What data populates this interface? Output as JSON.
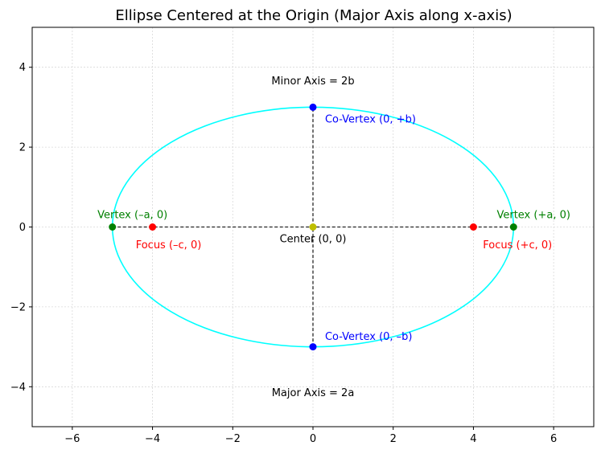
{
  "chart_data": {
    "type": "line",
    "title": "Ellipse Centered at the Origin (Major Axis along x-axis)",
    "xlabel": "",
    "ylabel": "",
    "xlim": [
      -7,
      7
    ],
    "ylim": [
      -5,
      5
    ],
    "grid": true,
    "xticks": [
      -6,
      -4,
      -2,
      0,
      2,
      4,
      6
    ],
    "yticks": [
      -4,
      -2,
      0,
      2,
      4
    ],
    "xtick_labels": [
      "−6",
      "−4",
      "−2",
      "0",
      "2",
      "4",
      "6"
    ],
    "ytick_labels": [
      "−4",
      "−2",
      "0",
      "2",
      "4"
    ],
    "ellipse": {
      "a": 5,
      "b": 3,
      "center": [
        0,
        0
      ],
      "color": "#00ffff"
    },
    "axis_lines": [
      {
        "name": "major-axis-line",
        "from": [
          -5,
          0
        ],
        "to": [
          5,
          0
        ],
        "color": "#000000"
      },
      {
        "name": "minor-axis-line",
        "from": [
          0,
          -3
        ],
        "to": [
          0,
          3
        ],
        "color": "#000000"
      }
    ],
    "points": [
      {
        "name": "center",
        "x": 0,
        "y": 0,
        "color": "#bfbf00"
      },
      {
        "name": "vertex-left",
        "x": -5,
        "y": 0,
        "color": "#008000"
      },
      {
        "name": "vertex-right",
        "x": 5,
        "y": 0,
        "color": "#008000"
      },
      {
        "name": "focus-left",
        "x": -4,
        "y": 0,
        "color": "#ff0000"
      },
      {
        "name": "focus-right",
        "x": 4,
        "y": 0,
        "color": "#ff0000"
      },
      {
        "name": "co-vertex-top",
        "x": 0,
        "y": 3,
        "color": "#0000ff"
      },
      {
        "name": "co-vertex-bottom",
        "x": 0,
        "y": -3,
        "color": "#0000ff"
      }
    ],
    "annotations": [
      {
        "name": "label-center",
        "text": "Center (0, 0)",
        "x": 0,
        "y": -0.3,
        "anchor": "middle",
        "color": "#000000"
      },
      {
        "name": "label-vertex-left",
        "text": "Vertex (–a, 0)",
        "x": -4.5,
        "y": 0.3,
        "anchor": "middle",
        "color": "#008000"
      },
      {
        "name": "label-vertex-right",
        "text": "Vertex (+a, 0)",
        "x": 5.5,
        "y": 0.3,
        "anchor": "middle",
        "color": "#008000"
      },
      {
        "name": "label-focus-left",
        "text": "Focus (–c, 0)",
        "x": -3.6,
        "y": -0.45,
        "anchor": "middle",
        "color": "#ff0000"
      },
      {
        "name": "label-focus-right",
        "text": "Focus (+c, 0)",
        "x": 5.1,
        "y": -0.45,
        "anchor": "middle",
        "color": "#ff0000"
      },
      {
        "name": "label-co-vertex-top",
        "text": "Co-Vertex (0, +b)",
        "x": 0.3,
        "y": 2.7,
        "anchor": "start",
        "color": "#0000ff"
      },
      {
        "name": "label-co-vertex-bottom",
        "text": "Co-Vertex (0, –b)",
        "x": 0.3,
        "y": -2.75,
        "anchor": "start",
        "color": "#0000ff"
      },
      {
        "name": "label-minor-axis",
        "text": "Minor Axis = 2b",
        "x": 0,
        "y": 3.65,
        "anchor": "middle",
        "color": "#000000"
      },
      {
        "name": "label-major-axis",
        "text": "Major Axis = 2a",
        "x": 0,
        "y": -4.15,
        "anchor": "middle",
        "color": "#000000"
      }
    ]
  }
}
